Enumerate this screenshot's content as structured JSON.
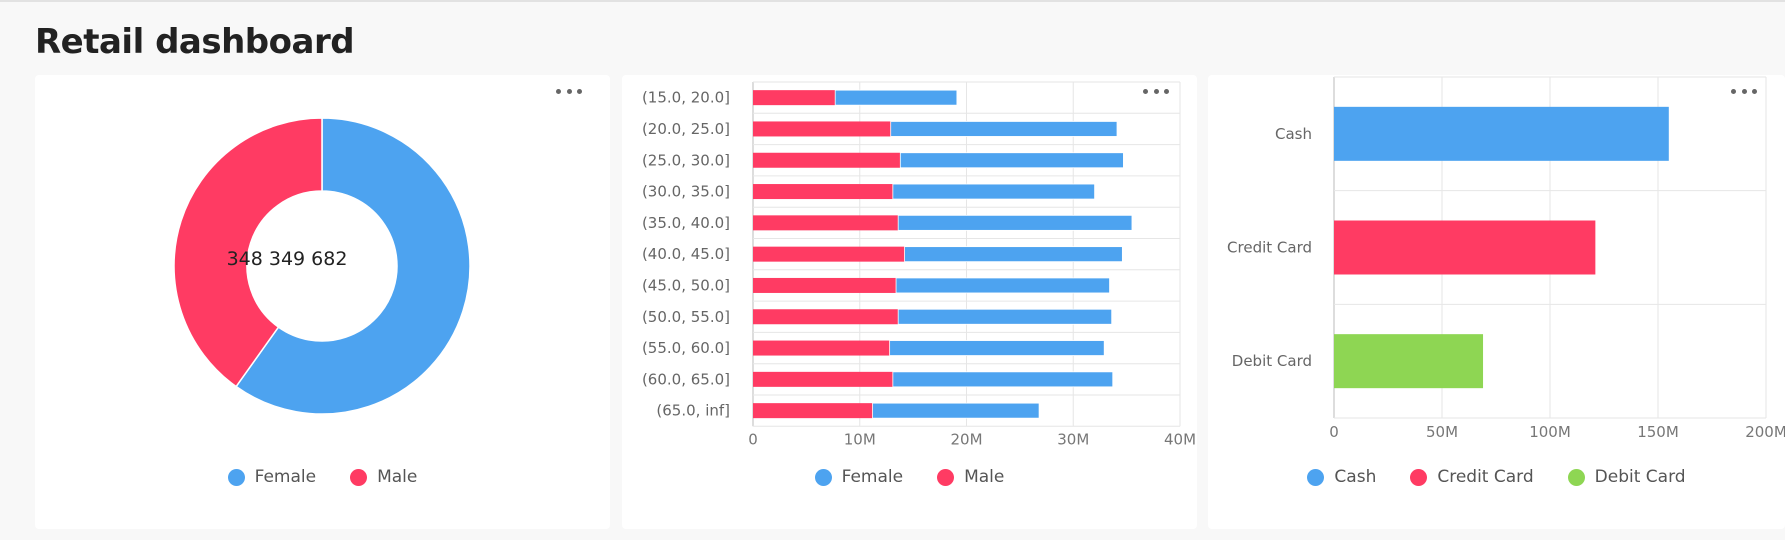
{
  "page": {
    "title": "Retail dashboard"
  },
  "colors": {
    "female": "#4da3f0",
    "male": "#ff3b63",
    "cash": "#4da3f0",
    "credit": "#ff3b63",
    "debit": "#8ed653",
    "grid": "#e6e6e6",
    "axis": "#999999"
  },
  "widgets": [
    {
      "menu_icon": "more-horizontal-icon",
      "center_label": "348 349 682",
      "legend": [
        "Female",
        "Male"
      ]
    },
    {
      "menu_icon": "more-horizontal-icon",
      "legend": [
        "Female",
        "Male"
      ]
    },
    {
      "menu_icon": "more-horizontal-icon",
      "legend": [
        "Cash",
        "Credit Card",
        "Debit Card"
      ]
    }
  ],
  "chart_data": [
    {
      "type": "pie",
      "series": [
        {
          "name": "Female",
          "value": 208500000
        },
        {
          "name": "Male",
          "value": 139849682
        }
      ],
      "total_label": "348 349 682"
    },
    {
      "type": "bar",
      "orientation": "horizontal",
      "stacked": true,
      "categories": [
        "(15.0, 20.0]",
        "(20.0, 25.0]",
        "(25.0, 30.0]",
        "(30.0, 35.0]",
        "(35.0, 40.0]",
        "(40.0, 45.0]",
        "(45.0, 50.0]",
        "(50.0, 55.0]",
        "(55.0, 60.0]",
        "(60.0, 65.0]",
        "(65.0, inf]"
      ],
      "series": [
        {
          "name": "Male",
          "values": [
            7.7,
            12.9,
            13.8,
            13.1,
            13.6,
            14.2,
            13.4,
            13.6,
            12.8,
            13.1,
            11.2
          ]
        },
        {
          "name": "Female",
          "values": [
            11.4,
            21.2,
            20.9,
            18.9,
            21.9,
            20.4,
            20.0,
            20.0,
            20.1,
            20.6,
            15.6
          ]
        }
      ],
      "xlim": [
        0,
        40
      ],
      "xticks": [
        "0",
        "10M",
        "20M",
        "30M",
        "40M"
      ]
    },
    {
      "type": "bar",
      "orientation": "horizontal",
      "categories": [
        "Cash",
        "Credit Card",
        "Debit Card"
      ],
      "values": [
        155,
        121,
        69
      ],
      "xlim": [
        0,
        200
      ],
      "xticks": [
        "0",
        "50M",
        "100M",
        "150M",
        "200M"
      ]
    }
  ]
}
